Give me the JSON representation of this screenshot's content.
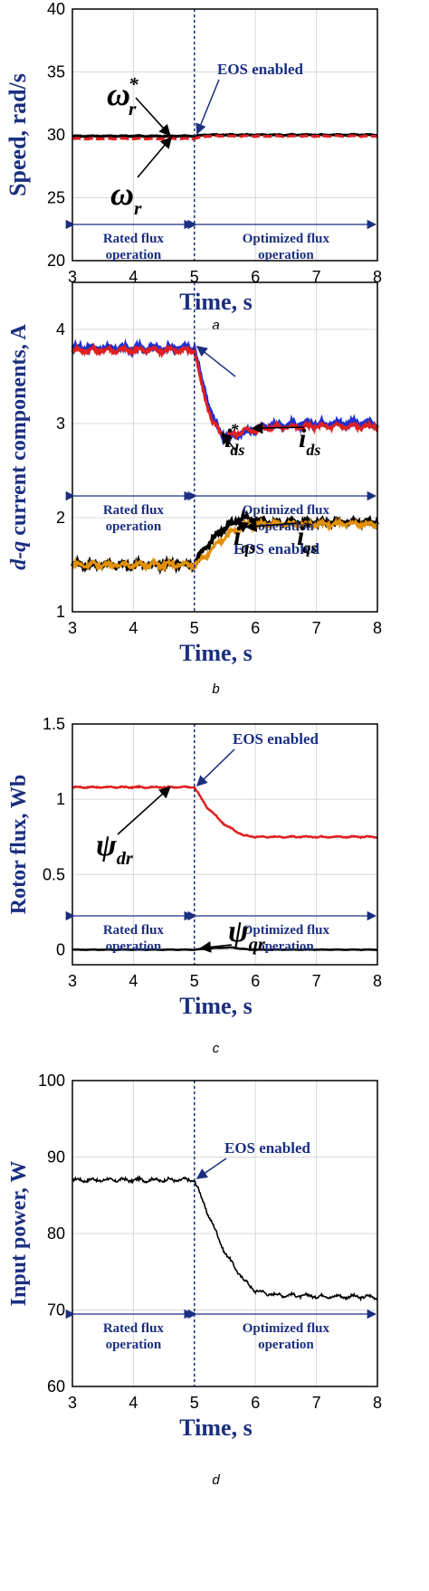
{
  "chart_data": [
    {
      "type": "line",
      "panel_label": "a",
      "xlabel": "Time, s",
      "ylabel": "Speed, rad/s",
      "xlim": [
        3,
        8
      ],
      "ylim": [
        20,
        40
      ],
      "xticks": [
        "3",
        "4",
        "5",
        "6",
        "7",
        "8"
      ],
      "yticks": [
        "20",
        "25",
        "30",
        "35",
        "40"
      ],
      "grid": true,
      "event_line_x": 5,
      "annotations": [
        "EOS enabled",
        "Rated flux operation",
        "Optimized flux operation"
      ],
      "series": [
        {
          "name": "ω*r",
          "color": "#000000",
          "x": [
            3,
            5,
            5.2,
            8
          ],
          "y": [
            29.9,
            29.9,
            30.0,
            30.0
          ]
        },
        {
          "name": "ωr",
          "color": "#e02020",
          "x": [
            3,
            5,
            5.2,
            8
          ],
          "y": [
            29.7,
            29.7,
            29.9,
            29.9
          ]
        }
      ]
    },
    {
      "type": "line",
      "panel_label": "b",
      "xlabel": "Time, s",
      "ylabel": "d-q current components, A",
      "xlim": [
        3,
        8
      ],
      "ylim": [
        1,
        4.5
      ],
      "xticks": [
        "3",
        "4",
        "5",
        "6",
        "7",
        "8"
      ],
      "yticks": [
        "1",
        "2",
        "3",
        "4"
      ],
      "grid": true,
      "event_line_x": 5,
      "annotations": [
        "EOS enabled",
        "Rated flux operation",
        "Optimized flux operation"
      ],
      "series": [
        {
          "name": "ids",
          "color": "#1f2fd0",
          "x": [
            3,
            5,
            5.1,
            5.3,
            5.5,
            5.8,
            6.2,
            7,
            8
          ],
          "y": [
            3.8,
            3.8,
            3.5,
            3.05,
            2.85,
            2.9,
            2.98,
            3.0,
            3.0
          ]
        },
        {
          "name": "i*ds",
          "color": "#e02020",
          "x": [
            3,
            5,
            5.1,
            5.3,
            5.5,
            5.8,
            6.2,
            7,
            8
          ],
          "y": [
            3.78,
            3.78,
            3.45,
            3.0,
            2.86,
            2.92,
            2.96,
            2.97,
            2.97
          ]
        },
        {
          "name": "iqs",
          "color": "#000000",
          "x": [
            3,
            5,
            5.2,
            5.5,
            5.8,
            6.2,
            7,
            8
          ],
          "y": [
            1.5,
            1.5,
            1.7,
            1.9,
            2.0,
            1.95,
            1.95,
            1.95
          ]
        },
        {
          "name": "i*qs",
          "color": "#e0900a",
          "x": [
            3,
            5,
            5.2,
            5.5,
            5.8,
            6.2,
            7,
            8
          ],
          "y": [
            1.5,
            1.5,
            1.6,
            1.8,
            1.92,
            1.93,
            1.93,
            1.93
          ]
        }
      ]
    },
    {
      "type": "line",
      "panel_label": "c",
      "xlabel": "Time, s",
      "ylabel": "Rotor flux, Wb",
      "xlim": [
        3,
        8
      ],
      "ylim": [
        -0.1,
        1.5
      ],
      "xticks": [
        "3",
        "4",
        "5",
        "6",
        "7",
        "8"
      ],
      "yticks": [
        "0",
        "0.5",
        "1",
        "1.5"
      ],
      "grid": true,
      "event_line_x": 5,
      "annotations": [
        "EOS enabled",
        "Rated flux operation",
        "Optimized flux operation"
      ],
      "series": [
        {
          "name": "ψdr",
          "color": "#e02020",
          "x": [
            3,
            5,
            5.2,
            5.5,
            5.8,
            6,
            7,
            8
          ],
          "y": [
            1.08,
            1.08,
            0.95,
            0.83,
            0.76,
            0.75,
            0.75,
            0.75
          ]
        },
        {
          "name": "ψqr",
          "color": "#000000",
          "x": [
            3,
            5,
            5.3,
            5.6,
            5.9,
            8
          ],
          "y": [
            0.0,
            0.0,
            0.01,
            0.015,
            0.0,
            0.0
          ]
        }
      ]
    },
    {
      "type": "line",
      "panel_label": "d",
      "xlabel": "Time, s",
      "ylabel": "Input power, W",
      "xlim": [
        3,
        8
      ],
      "ylim": [
        60,
        100
      ],
      "xticks": [
        "3",
        "4",
        "5",
        "6",
        "7",
        "8"
      ],
      "yticks": [
        "60",
        "70",
        "80",
        "90",
        "100"
      ],
      "grid": true,
      "event_line_x": 5,
      "annotations": [
        "EOS enabled",
        "Rated flux operation",
        "Optimized flux operation"
      ],
      "series": [
        {
          "name": "Input power",
          "color": "#000000",
          "x": [
            3,
            5,
            5.2,
            5.5,
            5.8,
            6,
            6.3,
            7,
            8
          ],
          "y": [
            87.0,
            87.0,
            83.0,
            77.5,
            74.0,
            72.5,
            72.0,
            71.8,
            71.7
          ]
        }
      ]
    }
  ]
}
